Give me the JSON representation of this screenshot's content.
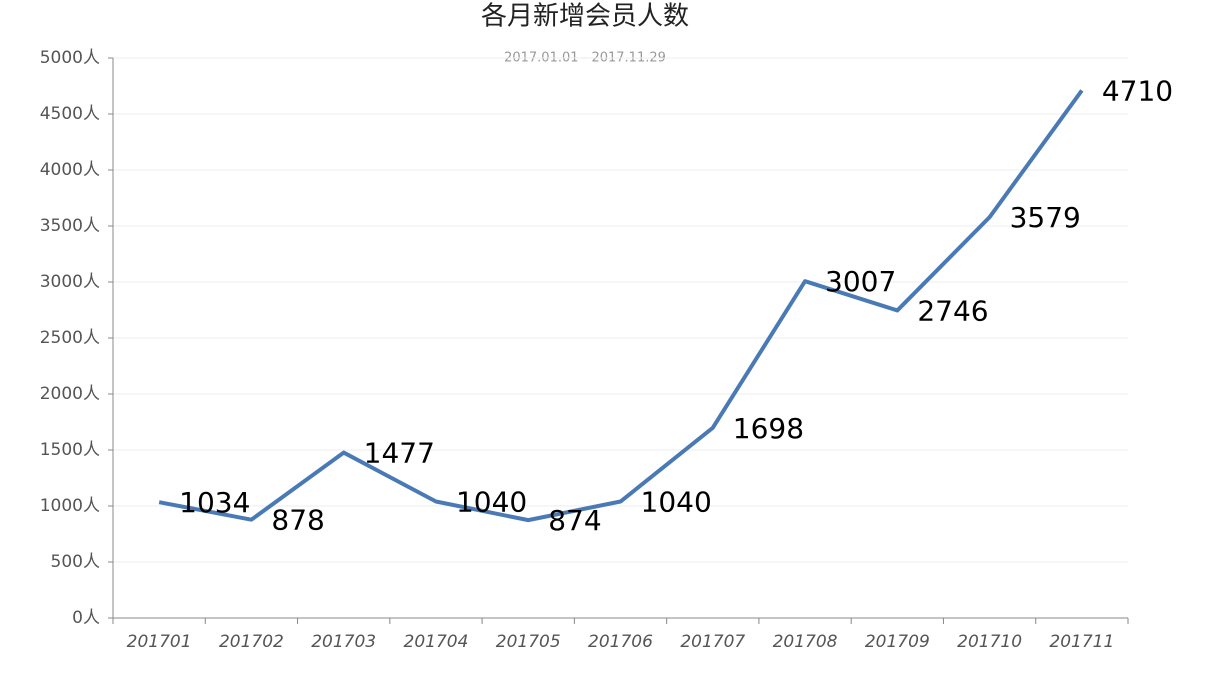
{
  "chart_data": {
    "type": "line",
    "title": "各月新增会员人数",
    "subtitle": "2017.01.01 - 2017.11.29",
    "categories": [
      "201701",
      "201702",
      "201703",
      "201704",
      "201705",
      "201706",
      "201707",
      "201708",
      "201709",
      "201710",
      "201711"
    ],
    "values": [
      1034,
      878,
      1477,
      1040,
      874,
      1040,
      1698,
      3007,
      2746,
      3579,
      4710
    ],
    "color": "#4a7ab5",
    "ylim": [
      0,
      5000
    ],
    "yticks": [
      {
        "value": 0,
        "label": "0人"
      },
      {
        "value": 500,
        "label": "500人"
      },
      {
        "value": 1000,
        "label": "1000人"
      },
      {
        "value": 1500,
        "label": "1500人"
      },
      {
        "value": 2000,
        "label": "2000人"
      },
      {
        "value": 2500,
        "label": "2500人"
      },
      {
        "value": 3000,
        "label": "3000人"
      },
      {
        "value": 3500,
        "label": "3500人"
      },
      {
        "value": 4000,
        "label": "4000人"
      },
      {
        "value": 4500,
        "label": "4500人"
      },
      {
        "value": 5000,
        "label": "5000人"
      }
    ],
    "grid": true
  }
}
